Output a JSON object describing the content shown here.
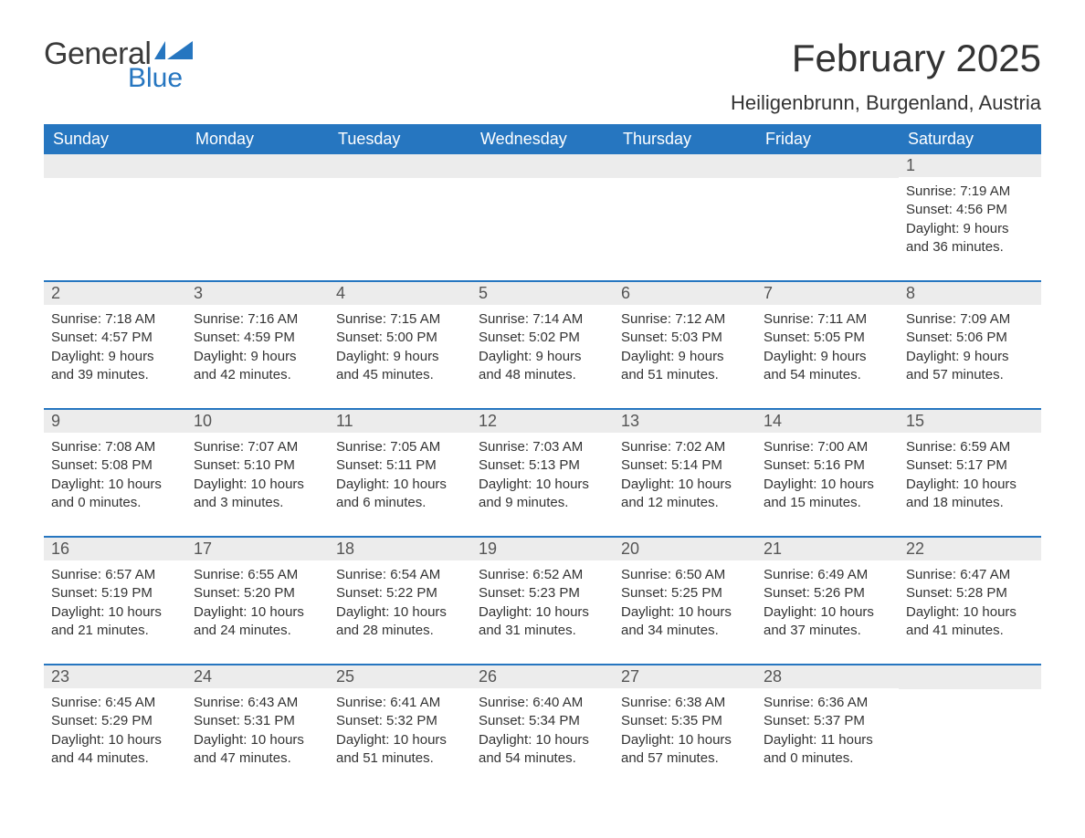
{
  "logo": {
    "text_general": "General",
    "text_blue": "Blue"
  },
  "title": "February 2025",
  "location": "Heiligenbrunn, Burgenland, Austria",
  "colors": {
    "header_bg": "#2676c0",
    "header_text": "#ffffff",
    "daynum_bg": "#ececec",
    "daynum_text": "#555555",
    "body_text": "#333333",
    "rule": "#2676c0",
    "page_bg": "#ffffff"
  },
  "weekdays": [
    "Sunday",
    "Monday",
    "Tuesday",
    "Wednesday",
    "Thursday",
    "Friday",
    "Saturday"
  ],
  "weeks": [
    [
      {
        "day": "",
        "sunrise": "",
        "sunset": "",
        "daylight": ""
      },
      {
        "day": "",
        "sunrise": "",
        "sunset": "",
        "daylight": ""
      },
      {
        "day": "",
        "sunrise": "",
        "sunset": "",
        "daylight": ""
      },
      {
        "day": "",
        "sunrise": "",
        "sunset": "",
        "daylight": ""
      },
      {
        "day": "",
        "sunrise": "",
        "sunset": "",
        "daylight": ""
      },
      {
        "day": "",
        "sunrise": "",
        "sunset": "",
        "daylight": ""
      },
      {
        "day": "1",
        "sunrise": "Sunrise: 7:19 AM",
        "sunset": "Sunset: 4:56 PM",
        "daylight": "Daylight: 9 hours and 36 minutes."
      }
    ],
    [
      {
        "day": "2",
        "sunrise": "Sunrise: 7:18 AM",
        "sunset": "Sunset: 4:57 PM",
        "daylight": "Daylight: 9 hours and 39 minutes."
      },
      {
        "day": "3",
        "sunrise": "Sunrise: 7:16 AM",
        "sunset": "Sunset: 4:59 PM",
        "daylight": "Daylight: 9 hours and 42 minutes."
      },
      {
        "day": "4",
        "sunrise": "Sunrise: 7:15 AM",
        "sunset": "Sunset: 5:00 PM",
        "daylight": "Daylight: 9 hours and 45 minutes."
      },
      {
        "day": "5",
        "sunrise": "Sunrise: 7:14 AM",
        "sunset": "Sunset: 5:02 PM",
        "daylight": "Daylight: 9 hours and 48 minutes."
      },
      {
        "day": "6",
        "sunrise": "Sunrise: 7:12 AM",
        "sunset": "Sunset: 5:03 PM",
        "daylight": "Daylight: 9 hours and 51 minutes."
      },
      {
        "day": "7",
        "sunrise": "Sunrise: 7:11 AM",
        "sunset": "Sunset: 5:05 PM",
        "daylight": "Daylight: 9 hours and 54 minutes."
      },
      {
        "day": "8",
        "sunrise": "Sunrise: 7:09 AM",
        "sunset": "Sunset: 5:06 PM",
        "daylight": "Daylight: 9 hours and 57 minutes."
      }
    ],
    [
      {
        "day": "9",
        "sunrise": "Sunrise: 7:08 AM",
        "sunset": "Sunset: 5:08 PM",
        "daylight": "Daylight: 10 hours and 0 minutes."
      },
      {
        "day": "10",
        "sunrise": "Sunrise: 7:07 AM",
        "sunset": "Sunset: 5:10 PM",
        "daylight": "Daylight: 10 hours and 3 minutes."
      },
      {
        "day": "11",
        "sunrise": "Sunrise: 7:05 AM",
        "sunset": "Sunset: 5:11 PM",
        "daylight": "Daylight: 10 hours and 6 minutes."
      },
      {
        "day": "12",
        "sunrise": "Sunrise: 7:03 AM",
        "sunset": "Sunset: 5:13 PM",
        "daylight": "Daylight: 10 hours and 9 minutes."
      },
      {
        "day": "13",
        "sunrise": "Sunrise: 7:02 AM",
        "sunset": "Sunset: 5:14 PM",
        "daylight": "Daylight: 10 hours and 12 minutes."
      },
      {
        "day": "14",
        "sunrise": "Sunrise: 7:00 AM",
        "sunset": "Sunset: 5:16 PM",
        "daylight": "Daylight: 10 hours and 15 minutes."
      },
      {
        "day": "15",
        "sunrise": "Sunrise: 6:59 AM",
        "sunset": "Sunset: 5:17 PM",
        "daylight": "Daylight: 10 hours and 18 minutes."
      }
    ],
    [
      {
        "day": "16",
        "sunrise": "Sunrise: 6:57 AM",
        "sunset": "Sunset: 5:19 PM",
        "daylight": "Daylight: 10 hours and 21 minutes."
      },
      {
        "day": "17",
        "sunrise": "Sunrise: 6:55 AM",
        "sunset": "Sunset: 5:20 PM",
        "daylight": "Daylight: 10 hours and 24 minutes."
      },
      {
        "day": "18",
        "sunrise": "Sunrise: 6:54 AM",
        "sunset": "Sunset: 5:22 PM",
        "daylight": "Daylight: 10 hours and 28 minutes."
      },
      {
        "day": "19",
        "sunrise": "Sunrise: 6:52 AM",
        "sunset": "Sunset: 5:23 PM",
        "daylight": "Daylight: 10 hours and 31 minutes."
      },
      {
        "day": "20",
        "sunrise": "Sunrise: 6:50 AM",
        "sunset": "Sunset: 5:25 PM",
        "daylight": "Daylight: 10 hours and 34 minutes."
      },
      {
        "day": "21",
        "sunrise": "Sunrise: 6:49 AM",
        "sunset": "Sunset: 5:26 PM",
        "daylight": "Daylight: 10 hours and 37 minutes."
      },
      {
        "day": "22",
        "sunrise": "Sunrise: 6:47 AM",
        "sunset": "Sunset: 5:28 PM",
        "daylight": "Daylight: 10 hours and 41 minutes."
      }
    ],
    [
      {
        "day": "23",
        "sunrise": "Sunrise: 6:45 AM",
        "sunset": "Sunset: 5:29 PM",
        "daylight": "Daylight: 10 hours and 44 minutes."
      },
      {
        "day": "24",
        "sunrise": "Sunrise: 6:43 AM",
        "sunset": "Sunset: 5:31 PM",
        "daylight": "Daylight: 10 hours and 47 minutes."
      },
      {
        "day": "25",
        "sunrise": "Sunrise: 6:41 AM",
        "sunset": "Sunset: 5:32 PM",
        "daylight": "Daylight: 10 hours and 51 minutes."
      },
      {
        "day": "26",
        "sunrise": "Sunrise: 6:40 AM",
        "sunset": "Sunset: 5:34 PM",
        "daylight": "Daylight: 10 hours and 54 minutes."
      },
      {
        "day": "27",
        "sunrise": "Sunrise: 6:38 AM",
        "sunset": "Sunset: 5:35 PM",
        "daylight": "Daylight: 10 hours and 57 minutes."
      },
      {
        "day": "28",
        "sunrise": "Sunrise: 6:36 AM",
        "sunset": "Sunset: 5:37 PM",
        "daylight": "Daylight: 11 hours and 0 minutes."
      },
      {
        "day": "",
        "sunrise": "",
        "sunset": "",
        "daylight": ""
      }
    ]
  ]
}
